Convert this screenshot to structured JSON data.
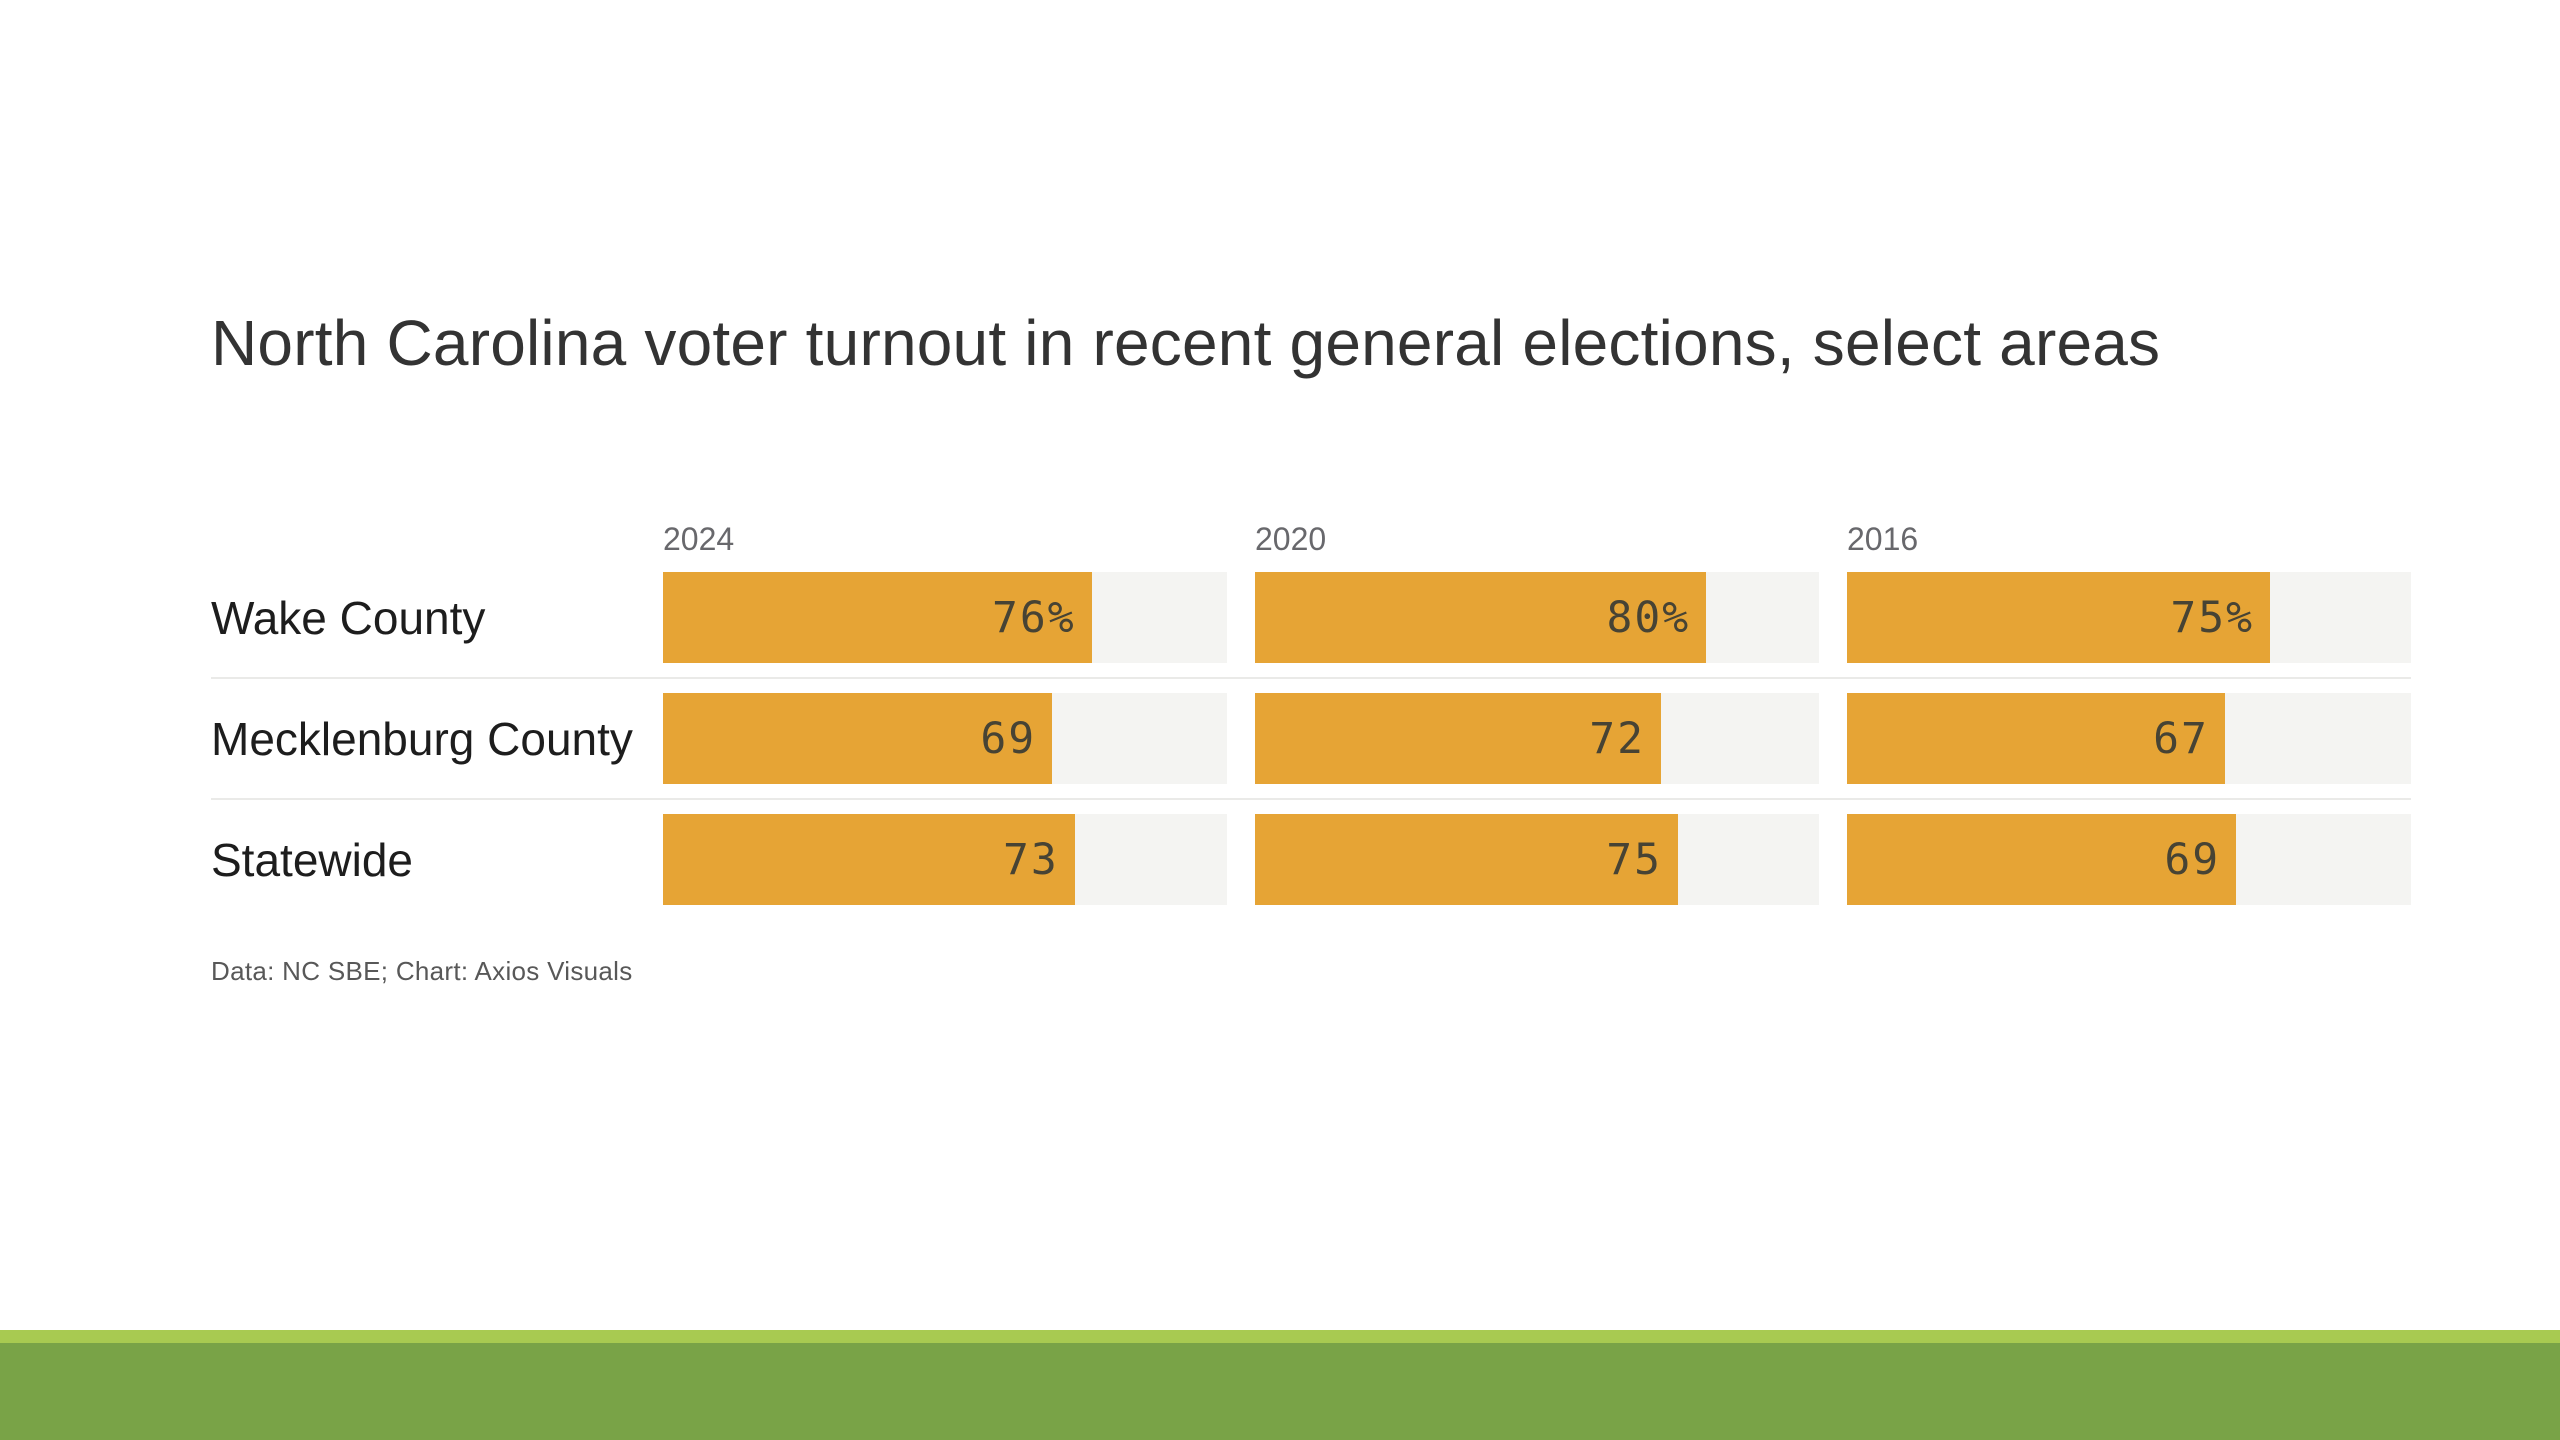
{
  "title": "North Carolina voter turnout in recent general elections, select areas",
  "source_credit": "Data: NC SBE; Chart: Axios Visuals",
  "chart_data": {
    "type": "bar",
    "orientation": "horizontal",
    "title": "North Carolina voter turnout in recent general elections, select areas",
    "columns": [
      "2024",
      "2020",
      "2016"
    ],
    "rows": [
      {
        "label": "Wake County",
        "values": [
          76,
          80,
          75
        ],
        "display": [
          "76%",
          "80%",
          "75%"
        ]
      },
      {
        "label": "Mecklenburg County",
        "values": [
          69,
          72,
          67
        ],
        "display": [
          "69",
          "72",
          "67"
        ]
      },
      {
        "label": "Statewide",
        "values": [
          73,
          75,
          69
        ],
        "display": [
          "73",
          "75",
          "69"
        ]
      }
    ],
    "xlim": [
      0,
      100
    ],
    "value_unit": "percent",
    "legend": "none",
    "grid": "off",
    "source": "Data: NC SBE; Chart: Axios Visuals"
  },
  "colors": {
    "bar_fill": "#e6a435",
    "bar_track": "#f4f4f2",
    "row_separator": "#eaeae8",
    "title_text": "#333333",
    "row_label_text": "#1d1d1d",
    "column_header_text": "#68686c",
    "value_text": "#474334",
    "source_text": "#585858",
    "footer_band_light": "#a8ca51",
    "footer_band_dark": "#79a347",
    "background": "#ffffff"
  }
}
